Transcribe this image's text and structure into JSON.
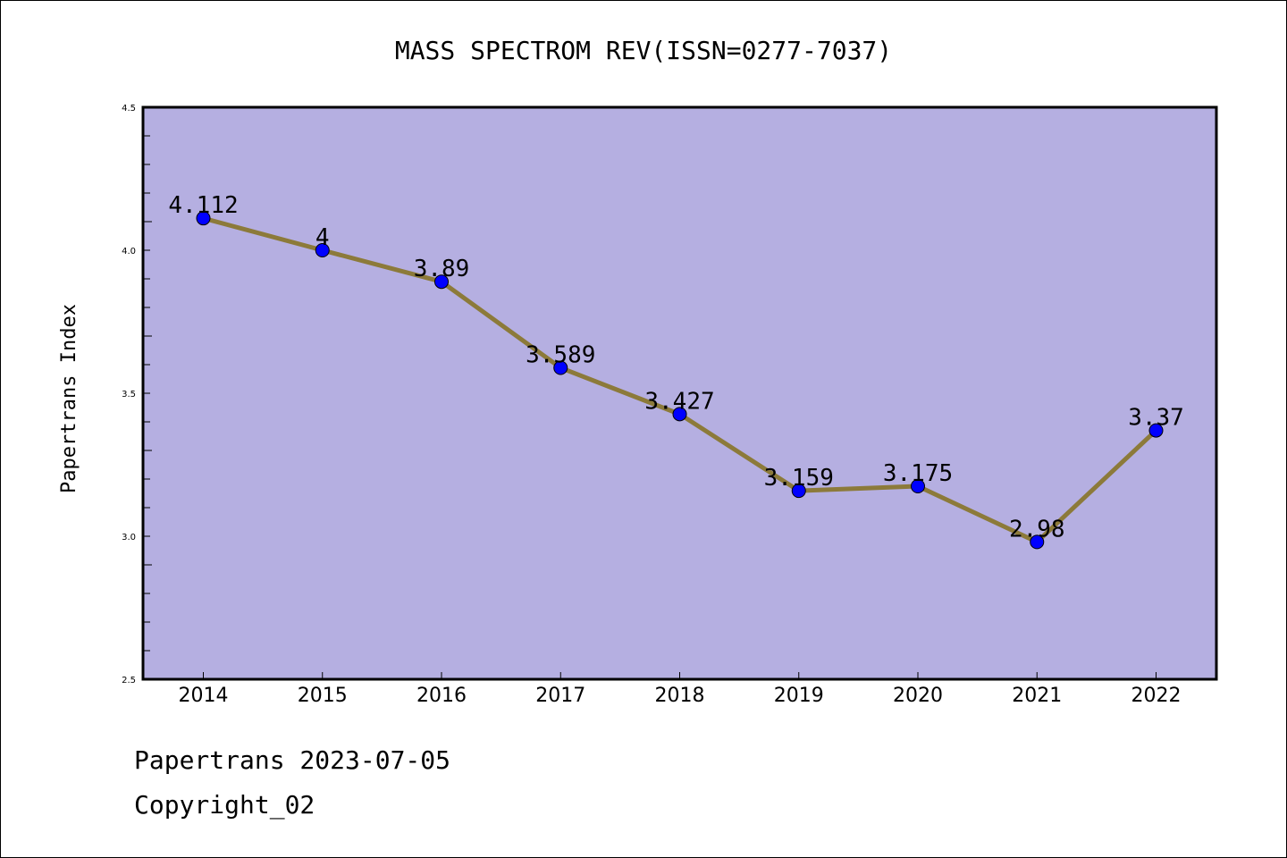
{
  "chart_data": {
    "type": "line",
    "title": "MASS SPECTROM REV(ISSN=0277-7037)",
    "ylabel": "Papertrans Index",
    "xlabel": "",
    "categories": [
      "2014",
      "2015",
      "2016",
      "2017",
      "2018",
      "2019",
      "2020",
      "2021",
      "2022"
    ],
    "series": [
      {
        "values": [
          4.112,
          4,
          3.89,
          3.589,
          3.427,
          3.159,
          3.175,
          2.98,
          3.37
        ]
      }
    ],
    "data_labels": [
      "4.112",
      "4",
      "3.89",
      "3.589",
      "3.427",
      "3.159",
      "3.175",
      "2.98",
      "3.37"
    ],
    "ylim": [
      2.5,
      4.5
    ],
    "yticks": [
      "2.5",
      "3.0",
      "3.5",
      "4.0",
      "4.5"
    ],
    "grid": false,
    "colors": {
      "plot_bg": "#b5afe1",
      "line": "#8c7a3a",
      "marker": "#0000ff"
    }
  },
  "footer": {
    "date_line": "Papertrans 2023-07-05",
    "copyright": "Copyright_02"
  }
}
